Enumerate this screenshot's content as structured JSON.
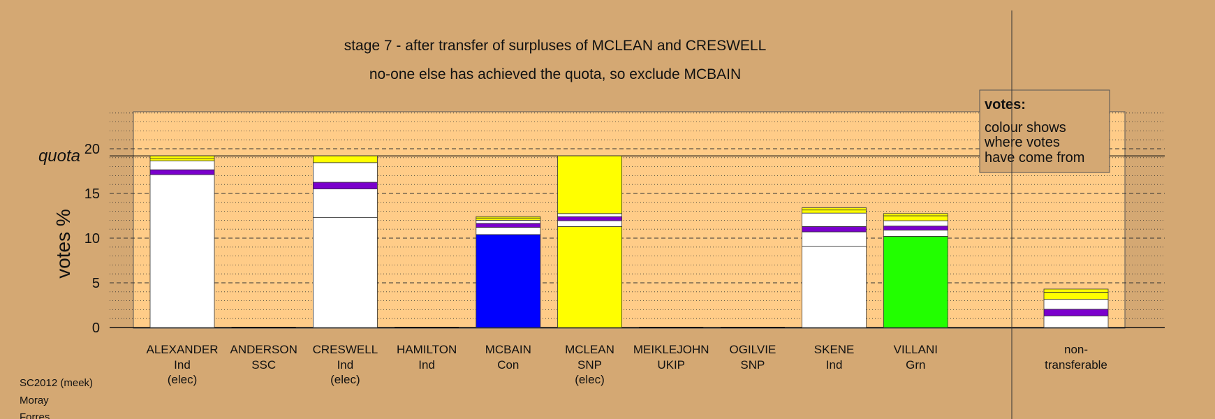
{
  "chart_data": {
    "type": "bar",
    "stacked": true,
    "title": "stage 7 - after transfer of surpluses of MCLEAN and CRESWELL",
    "subtitle": "no-one else has achieved the quota, so exclude MCBAIN",
    "ylabel": "votes %",
    "quota_label": "quota",
    "quota": 19.2,
    "ylim": [
      0,
      24.5
    ],
    "yticks": [
      0,
      5,
      10,
      15,
      20
    ],
    "grid": true,
    "legend": {
      "title": "votes:",
      "lines": [
        "colour shows",
        "where votes",
        "have come from"
      ],
      "placement": "top-right"
    },
    "candidates": [
      {
        "name": "ALEXANDER",
        "party": "Ind",
        "status": "(elec)",
        "segments": [
          {
            "value": 17.1,
            "color": "#ffffff"
          },
          {
            "value": 0.55,
            "color": "#7a00cc"
          },
          {
            "value": 1.0,
            "color": "#ffffff"
          },
          {
            "value": 0.25,
            "color": "#ffff00"
          },
          {
            "value": 0.3,
            "color": "#ffff00"
          }
        ]
      },
      {
        "name": "ANDERSON",
        "party": "SSC",
        "status": "",
        "segments": []
      },
      {
        "name": "CRESWELL",
        "party": "Ind",
        "status": "(elec)",
        "segments": [
          {
            "value": 12.3,
            "color": "#ffffff"
          },
          {
            "value": 3.2,
            "color": "#ffffff"
          },
          {
            "value": 0.75,
            "color": "#7a00cc"
          },
          {
            "value": 2.2,
            "color": "#ffffff"
          },
          {
            "value": 0.75,
            "color": "#ffff00"
          }
        ]
      },
      {
        "name": "HAMILTON",
        "party": "Ind",
        "status": "",
        "segments": []
      },
      {
        "name": "MCBAIN",
        "party": "Con",
        "status": "",
        "segments": [
          {
            "value": 10.4,
            "color": "#0000ff"
          },
          {
            "value": 0.8,
            "color": "#ffffff"
          },
          {
            "value": 0.45,
            "color": "#7a00cc"
          },
          {
            "value": 0.35,
            "color": "#ffffff"
          },
          {
            "value": 0.25,
            "color": "#ffff00"
          },
          {
            "value": 0.15,
            "color": "#ffff00"
          }
        ]
      },
      {
        "name": "MCLEAN",
        "party": "SNP",
        "status": "(elec)",
        "segments": [
          {
            "value": 11.3,
            "color": "#ffff00"
          },
          {
            "value": 0.65,
            "color": "#ffffff"
          },
          {
            "value": 0.45,
            "color": "#7a00cc"
          },
          {
            "value": 0.35,
            "color": "#ffffff"
          },
          {
            "value": 6.45,
            "color": "#ffff00"
          }
        ]
      },
      {
        "name": "MEIKLEJOHN",
        "party": "UKIP",
        "status": "",
        "segments": []
      },
      {
        "name": "OGILVIE",
        "party": "SNP",
        "status": "",
        "segments": []
      },
      {
        "name": "SKENE",
        "party": "Ind",
        "status": "",
        "segments": [
          {
            "value": 9.1,
            "color": "#ffffff"
          },
          {
            "value": 1.6,
            "color": "#ffffff"
          },
          {
            "value": 0.6,
            "color": "#7a00cc"
          },
          {
            "value": 1.5,
            "color": "#ffffff"
          },
          {
            "value": 0.35,
            "color": "#ffff00"
          },
          {
            "value": 0.25,
            "color": "#ffff00"
          }
        ]
      },
      {
        "name": "VILLANI",
        "party": "Grn",
        "status": "",
        "segments": [
          {
            "value": 10.2,
            "color": "#22ff00"
          },
          {
            "value": 0.7,
            "color": "#ffffff"
          },
          {
            "value": 0.45,
            "color": "#7a00cc"
          },
          {
            "value": 0.6,
            "color": "#ffffff"
          },
          {
            "value": 0.55,
            "color": "#ffff00"
          },
          {
            "value": 0.25,
            "color": "#ffff00"
          }
        ]
      }
    ],
    "nontransferable": {
      "label_line1": "non-",
      "label_line2": "transferable",
      "segments": [
        {
          "value": 1.3,
          "color": "#ffffff"
        },
        {
          "value": 0.75,
          "color": "#7a00cc"
        },
        {
          "value": 1.1,
          "color": "#ffffff"
        },
        {
          "value": 0.8,
          "color": "#ffff00"
        },
        {
          "value": 0.35,
          "color": "#ffff00"
        }
      ]
    }
  },
  "footer": {
    "line1": "SC2012 (meek)",
    "line2": "Moray",
    "line3": "Forres"
  },
  "colors": {
    "background": "#d4a873",
    "plot_bg": "#ffcc88"
  }
}
